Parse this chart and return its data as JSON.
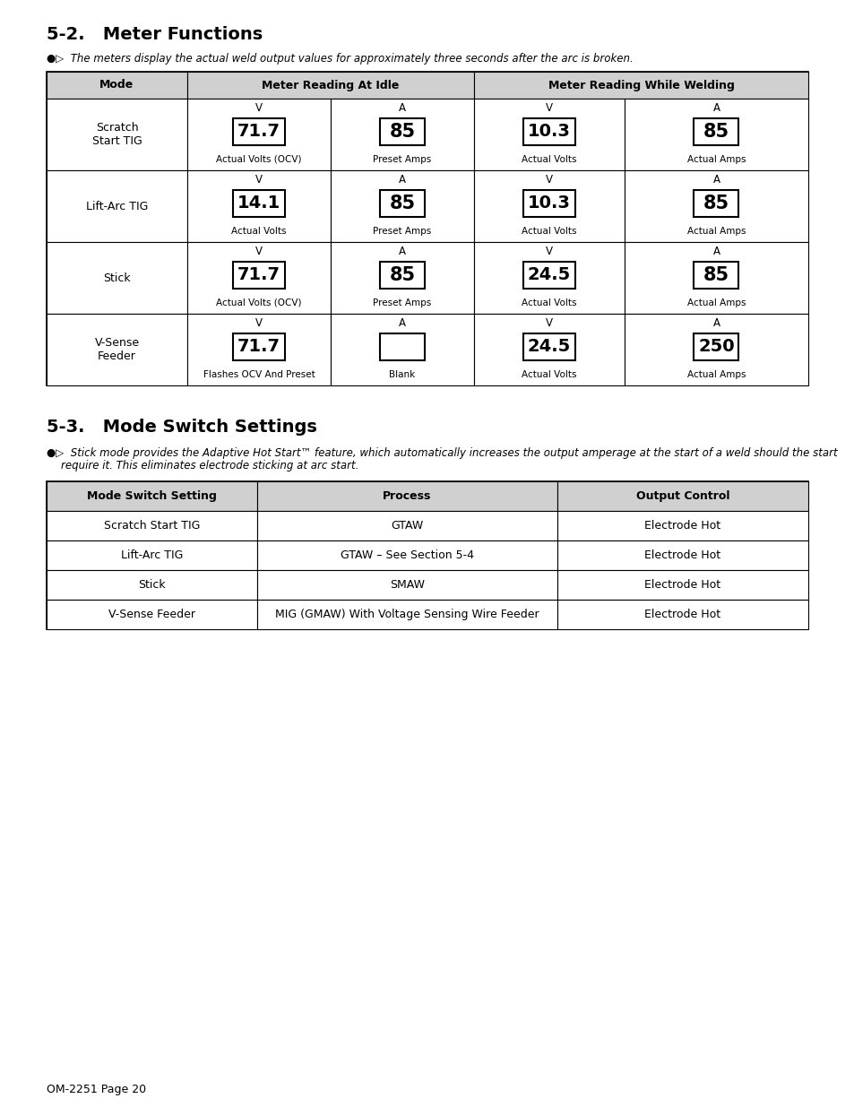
{
  "title1": "5-2.   Meter Functions",
  "title2": "5-3.   Mode Switch Settings",
  "note1_icon": "▱▷",
  "note1_text": "The meters display the actual weld output values for approximately three seconds after the arc is broken.",
  "note2_icon": "▱▷",
  "note2_line1": "Stick mode provides the Adaptive Hot Start™ feature, which automatically increases the output amperage at the start of a weld should the start",
  "note2_line2": "require it. This eliminates electrode sticking at arc start.",
  "footer": "OM-2251 Page 20",
  "table1": {
    "rows": [
      {
        "mode": "Scratch\nStart TIG",
        "idle_v": "71.7",
        "idle_a": "85",
        "weld_v": "10.3",
        "weld_a": "85",
        "idle_v_label": "Actual Volts (OCV)",
        "idle_a_label": "Preset Amps",
        "weld_v_label": "Actual Volts",
        "weld_a_label": "Actual Amps"
      },
      {
        "mode": "Lift-Arc TIG",
        "idle_v": "14.1",
        "idle_a": "85",
        "weld_v": "10.3",
        "weld_a": "85",
        "idle_v_label": "Actual Volts",
        "idle_a_label": "Preset Amps",
        "weld_v_label": "Actual Volts",
        "weld_a_label": "Actual Amps"
      },
      {
        "mode": "Stick",
        "idle_v": "71.7",
        "idle_a": "85",
        "weld_v": "24.5",
        "weld_a": "85",
        "idle_v_label": "Actual Volts (OCV)",
        "idle_a_label": "Preset Amps",
        "weld_v_label": "Actual Volts",
        "weld_a_label": "Actual Amps"
      },
      {
        "mode": "V-Sense\nFeeder",
        "idle_v": "71.7",
        "idle_a": "",
        "weld_v": "24.5",
        "weld_a": "250",
        "idle_v_label": "Flashes OCV And Preset",
        "idle_a_label": "Blank",
        "weld_v_label": "Actual Volts",
        "weld_a_label": "Actual Amps"
      }
    ]
  },
  "table2": {
    "headers": [
      "Mode Switch Setting",
      "Process",
      "Output Control"
    ],
    "rows": [
      [
        "Scratch Start TIG",
        "GTAW",
        "Electrode Hot"
      ],
      [
        "Lift-Arc TIG",
        "GTAW – See Section 5-4",
        "Electrode Hot"
      ],
      [
        "Stick",
        "SMAW",
        "Electrode Hot"
      ],
      [
        "V-Sense Feeder",
        "MIG (GMAW) With Voltage Sensing Wire Feeder",
        "Electrode Hot"
      ]
    ]
  }
}
